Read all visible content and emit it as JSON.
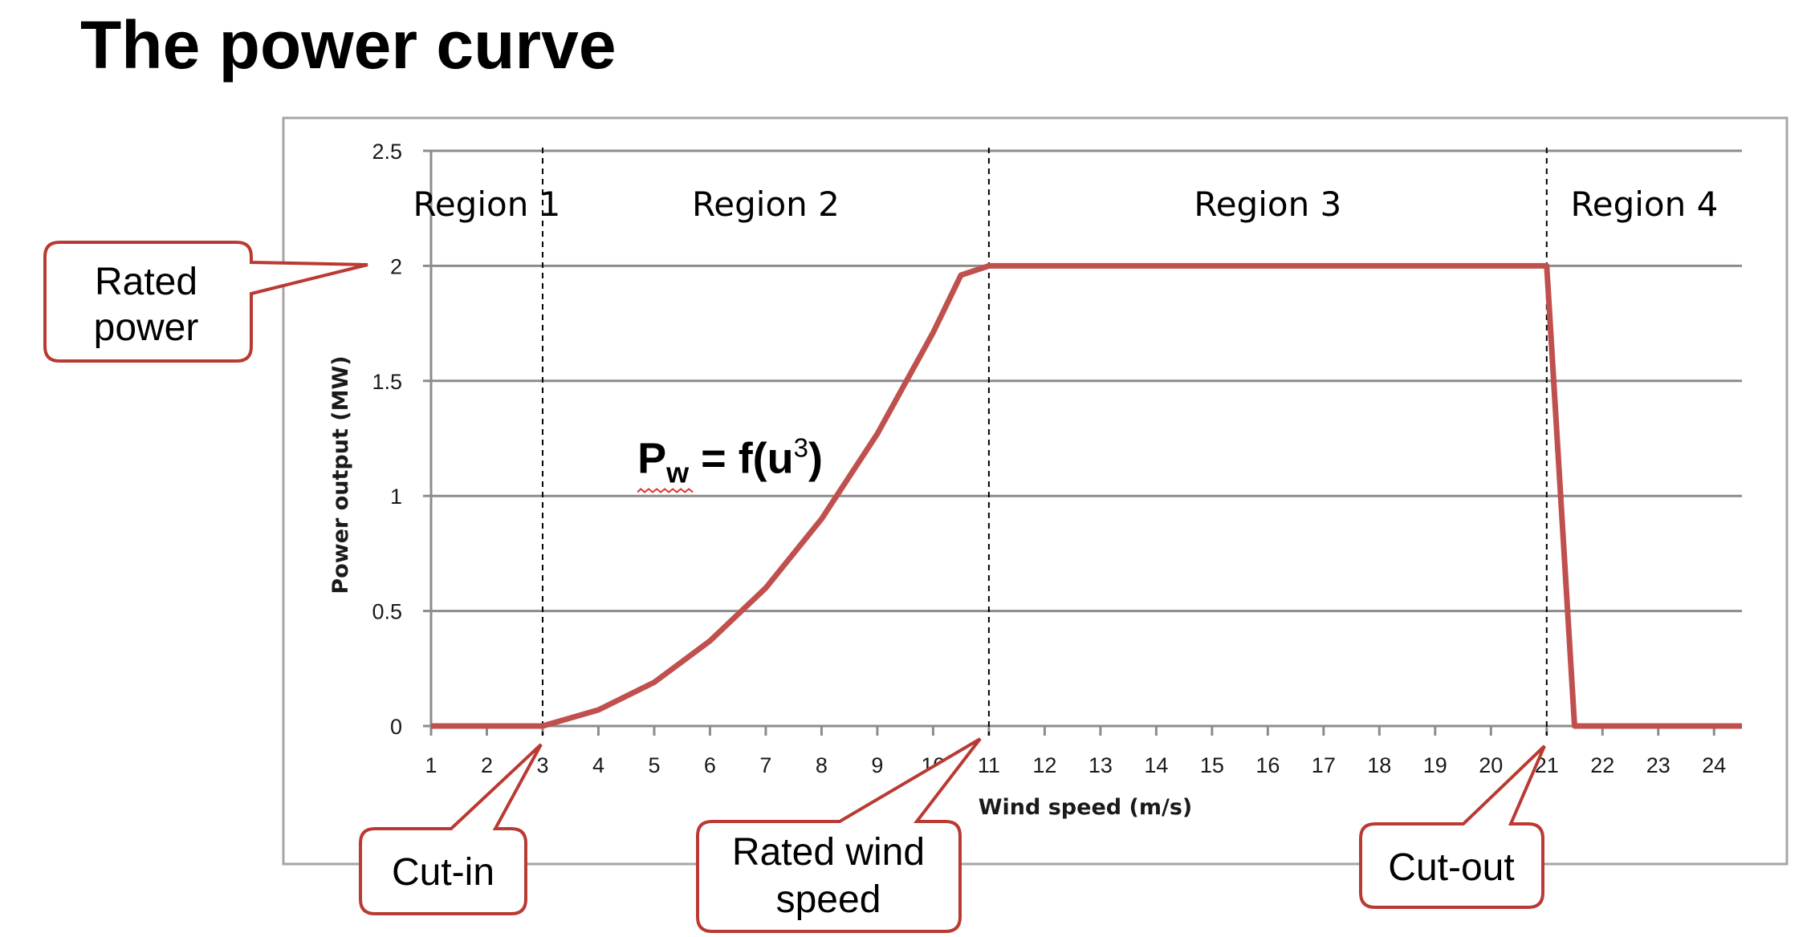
{
  "slide": {
    "title": "The power curve"
  },
  "colors": {
    "curve": "#c0504d",
    "callout_border": "#b93a32",
    "grid": "#8c8c8c",
    "frame": "#a6a6a6"
  },
  "chart_data": {
    "type": "line",
    "title": "",
    "xlabel": "Wind speed (m/s)",
    "ylabel": "Power output (MW)",
    "xlim": [
      1,
      24.5
    ],
    "ylim": [
      0,
      2.5
    ],
    "x_ticks": [
      "1",
      "2",
      "3",
      "4",
      "5",
      "6",
      "7",
      "8",
      "9",
      "10",
      "11",
      "12",
      "13",
      "14",
      "15",
      "16",
      "17",
      "18",
      "19",
      "20",
      "21",
      "22",
      "23",
      "24"
    ],
    "y_ticks": [
      "0",
      "0.5",
      "1",
      "1.5",
      "2",
      "2.5"
    ],
    "grid": true,
    "legend": "none",
    "series": [
      {
        "x": [
          1,
          3,
          4,
          5,
          6,
          7,
          8,
          9,
          10,
          10.5,
          11,
          21,
          21.5,
          24.5
        ],
        "y": [
          0,
          0,
          0.07,
          0.19,
          0.37,
          0.6,
          0.9,
          1.27,
          1.71,
          1.96,
          2.0,
          2.0,
          0,
          0
        ]
      }
    ],
    "region_boundaries": [
      3,
      11,
      21
    ],
    "regions": [
      {
        "label": "Region 1",
        "x": 2.0
      },
      {
        "label": "Region 2",
        "x": 7.0
      },
      {
        "label": "Region 3",
        "x": 16.0
      },
      {
        "label": "Region 4",
        "x": 22.75
      }
    ],
    "formula": {
      "P": "P",
      "sub": "w",
      "mid": " = f(u",
      "sup": "3",
      "end": ")",
      "x": 4.7,
      "y": 1.1
    }
  },
  "callouts": {
    "rated_power": {
      "line1": "Rated",
      "line2": "power"
    },
    "cut_in": {
      "label": "Cut-in"
    },
    "rated_wind_speed": {
      "line1": "Rated wind",
      "line2": "speed"
    },
    "cut_out": {
      "label": "Cut-out"
    }
  }
}
